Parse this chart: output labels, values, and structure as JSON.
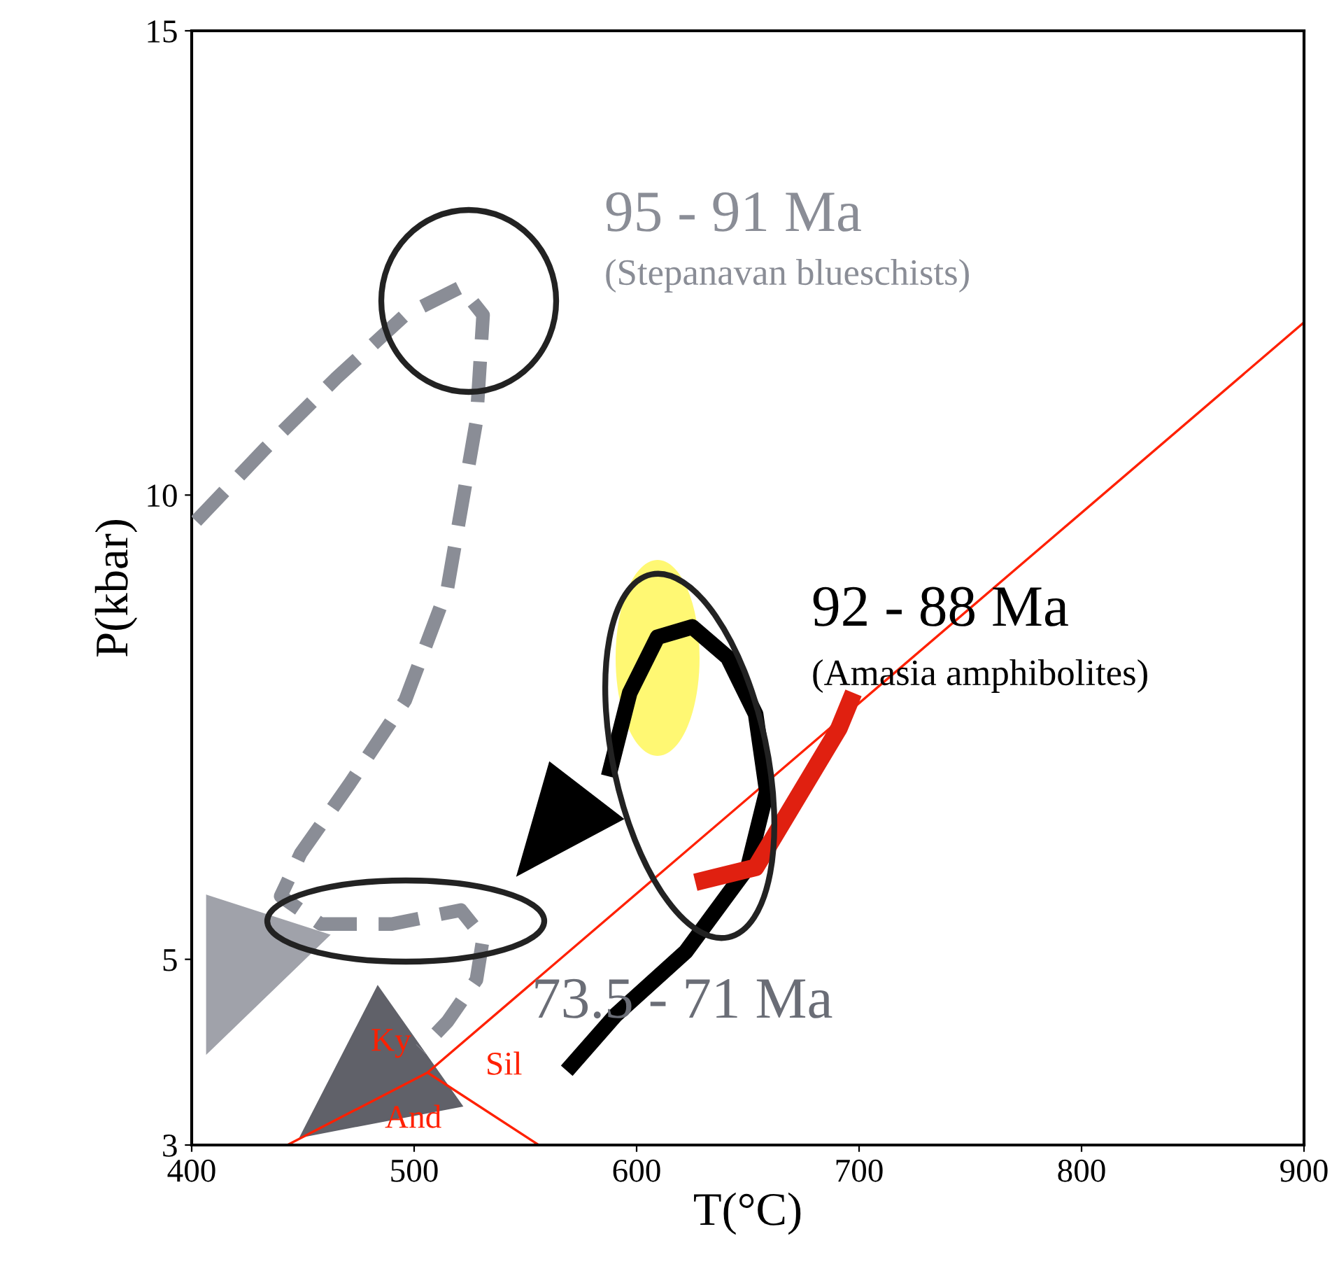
{
  "chart_data": {
    "type": "line",
    "xlabel": "T(°C)",
    "ylabel": "P(kbar)",
    "xlim": [
      400,
      900
    ],
    "xticks": [
      400,
      500,
      600,
      700,
      800,
      900
    ],
    "ylim": [
      3,
      15
    ],
    "yticks": [
      3,
      5,
      10,
      15
    ],
    "grid": false,
    "legend": false,
    "marker": "none",
    "series": [
      {
        "color": "#8a8d96",
        "line_style": "dashed",
        "x": [
          402,
          433,
          465,
          496,
          521,
          531,
          528,
          515,
          496,
          471,
          449,
          440,
          458,
          490,
          521,
          531,
          528,
          515,
          503
        ],
        "values": [
          9.72,
          10.5,
          11.26,
          11.94,
          12.24,
          11.94,
          10.8,
          9.0,
          7.79,
          6.89,
          6.14,
          5.68,
          5.38,
          5.38,
          5.53,
          5.23,
          4.78,
          4.33,
          4.03
        ]
      },
      {
        "color": "#000000",
        "line_style": "solid",
        "x": [
          568.6,
          590.6,
          622,
          650,
          658.5,
          653.5,
          641,
          625,
          609.4,
          596.9,
          587.4
        ],
        "values": [
          3.8,
          4.4,
          5.08,
          5.99,
          6.81,
          7.64,
          8.25,
          8.58,
          8.47,
          7.87,
          6.97
        ]
      },
      {
        "color": "#e02010",
        "line_style": "solid",
        "x": [
          626.4,
          653.5,
          691,
          697.5
        ],
        "values": [
          5.83,
          5.99,
          7.49,
          7.87
        ]
      },
      {
        "color": "#ff2000",
        "line_style": "solid",
        "x": [
          443,
          506,
          900,
          null,
          506,
          556
        ],
        "values": [
          3.0,
          3.78,
          11.86,
          null,
          3.78,
          3.0
        ]
      }
    ],
    "annotations": [
      "95 - 91 Ma",
      "(Stepanavan blueschists)",
      "92 - 88 Ma",
      "(Amasia amphibolites)",
      "73.5 - 71 Ma",
      "Ky",
      "Sil",
      "And"
    ]
  }
}
